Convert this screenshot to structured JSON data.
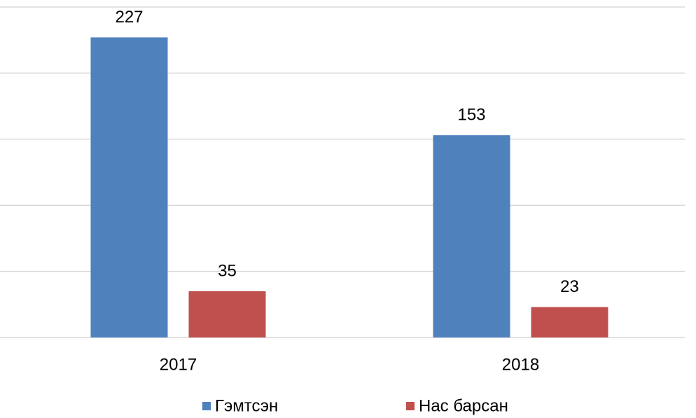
{
  "chart_data": {
    "type": "bar",
    "categories": [
      "2017",
      "2018"
    ],
    "series": [
      {
        "name": "Гэмтсэн",
        "color": "#4f81bd",
        "values": [
          227,
          153
        ]
      },
      {
        "name": "Нас барсан",
        "color": "#c0504d",
        "values": [
          35,
          23
        ]
      }
    ],
    "ylim": [
      0,
      250
    ],
    "yticks": [
      0,
      50,
      100,
      150,
      200,
      250
    ],
    "grid": true,
    "legend": "bottom"
  }
}
